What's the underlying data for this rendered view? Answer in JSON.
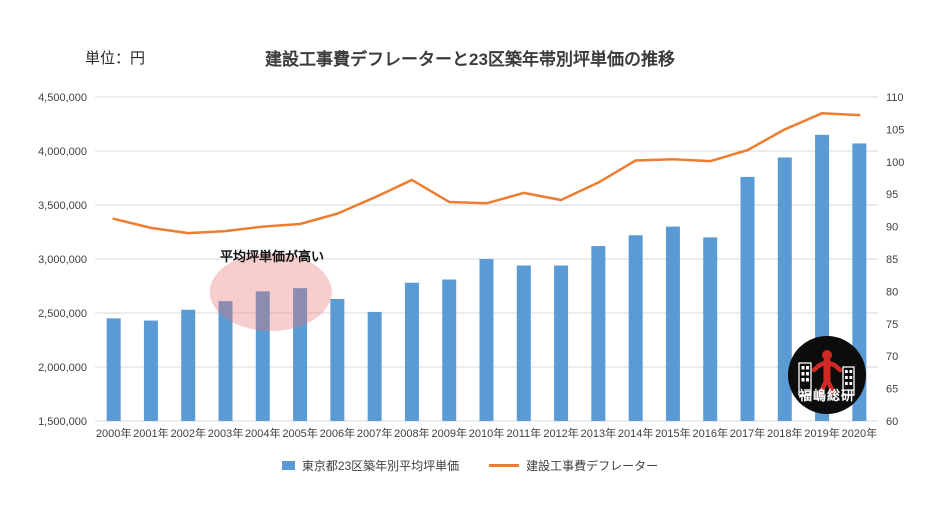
{
  "page": {
    "background": "#ffffff"
  },
  "chart_data": {
    "type": "bar+line",
    "title": "建設工事費デフレーターと23区築年帯別坪単価の推移",
    "unit_label": "単位：円",
    "categories": [
      "2000年",
      "2001年",
      "2002年",
      "2003年",
      "2004年",
      "2005年",
      "2006年",
      "2007年",
      "2008年",
      "2009年",
      "2010年",
      "2011年",
      "2012年",
      "2013年",
      "2014年",
      "2015年",
      "2016年",
      "2017年",
      "2018年",
      "2019年",
      "2020年"
    ],
    "series": [
      {
        "name": "東京都23区築年別平均坪単価",
        "type": "bar",
        "axis": "left",
        "color": "#5B9BD5",
        "values": [
          2450000,
          2430000,
          2530000,
          2610000,
          2700000,
          2730000,
          2630000,
          2510000,
          2780000,
          2810000,
          3000000,
          2940000,
          2940000,
          3120000,
          3220000,
          3300000,
          3200000,
          3760000,
          3940000,
          4150000,
          4070000
        ]
      },
      {
        "name": "建設工事費デフレーター",
        "type": "line",
        "axis": "right",
        "color": "#ED7D31",
        "values": [
          91.2,
          89.8,
          89.0,
          89.3,
          90.0,
          90.4,
          92.0,
          94.5,
          97.2,
          93.8,
          93.6,
          95.2,
          94.1,
          96.8,
          100.2,
          100.4,
          100.1,
          101.8,
          105.0,
          107.5,
          107.2
        ]
      }
    ],
    "left_axis": {
      "min": 1500000,
      "max": 4500000,
      "step": 500000
    },
    "right_axis": {
      "min": 60,
      "max": 110,
      "step": 5
    },
    "grid": true,
    "legend_position": "bottom",
    "annotation": {
      "text": "平均坪単価が高い",
      "highlight_color": "rgba(233,113,113,0.35)",
      "highlight_categories": [
        "2003年",
        "2004年",
        "2005年"
      ]
    },
    "gridline_color": "#d9d9d9"
  },
  "logo": {
    "text": "福嶋総研"
  }
}
